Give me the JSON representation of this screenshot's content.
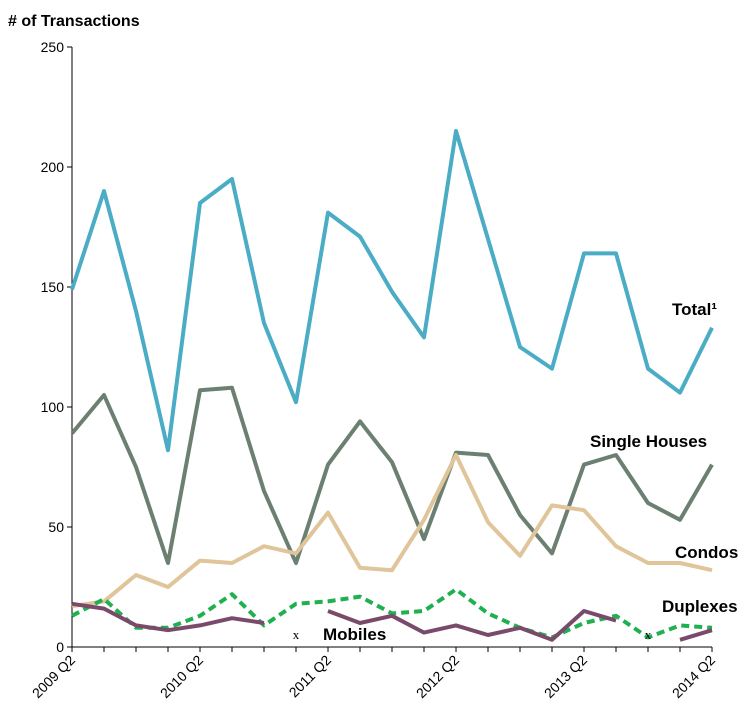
{
  "chart_data": {
    "type": "line",
    "y_axis_label": "# of Transactions",
    "categories": [
      "2009 Q2",
      null,
      null,
      null,
      "2010 Q2",
      null,
      null,
      null,
      "2011 Q2",
      null,
      null,
      null,
      "2012 Q2",
      null,
      null,
      null,
      "2013 Q2",
      null,
      null,
      null,
      "2014 Q2"
    ],
    "ylim": [
      0,
      250
    ],
    "yticks": [
      0,
      50,
      100,
      150,
      200,
      250
    ],
    "missing_marker": "x",
    "series": [
      {
        "name": "Total¹",
        "color": "#4bacc6",
        "values": [
          149,
          190,
          140,
          82,
          185,
          195,
          135,
          102,
          181,
          171,
          148,
          129,
          215,
          170,
          125,
          116,
          164,
          164,
          116,
          106,
          133
        ]
      },
      {
        "name": "Single Houses",
        "color": "#6b8070",
        "values": [
          89,
          105,
          75,
          35,
          107,
          108,
          65,
          35,
          76,
          94,
          77,
          45,
          81,
          80,
          55,
          39,
          76,
          80,
          60,
          53,
          76
        ]
      },
      {
        "name": "Condos",
        "color": "#e0c49a",
        "values": [
          17,
          19,
          30,
          25,
          36,
          35,
          42,
          39,
          56,
          33,
          32,
          53,
          80,
          52,
          38,
          59,
          57,
          42,
          35,
          35,
          32
        ]
      },
      {
        "name": "Duplexes",
        "color": "#1fb050",
        "dashed": true,
        "values": [
          13,
          20,
          8,
          8,
          13,
          22,
          9,
          18,
          19,
          21,
          14,
          15,
          24,
          14,
          8,
          4,
          10,
          13,
          4,
          9,
          8
        ]
      },
      {
        "name": "Mobiles",
        "color": "#7a4a6a",
        "values": [
          18,
          16,
          9,
          7,
          9,
          12,
          10,
          null,
          15,
          10,
          13,
          6,
          9,
          5,
          8,
          3,
          15,
          11,
          null,
          3,
          7
        ]
      }
    ]
  }
}
